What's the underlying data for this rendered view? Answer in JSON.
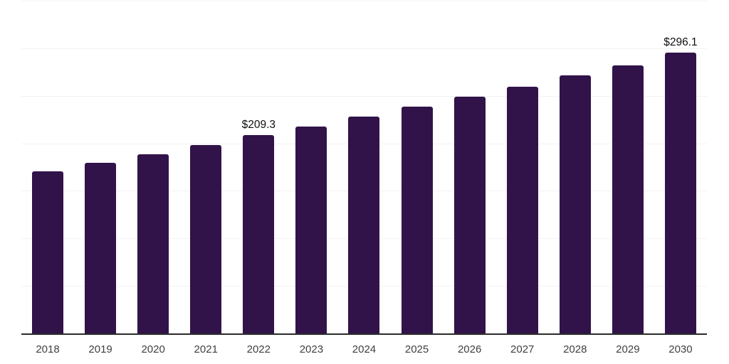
{
  "chart_data": {
    "type": "bar",
    "categories": [
      "2018",
      "2019",
      "2020",
      "2021",
      "2022",
      "2023",
      "2024",
      "2025",
      "2026",
      "2027",
      "2028",
      "2029",
      "2030"
    ],
    "values": [
      171.5,
      180.0,
      189.5,
      199.0,
      209.3,
      218.5,
      229.0,
      239.0,
      249.5,
      260.5,
      272.5,
      283.0,
      296.1
    ],
    "point_labels": [
      "",
      "",
      "",
      "",
      "$209.3",
      "",
      "",
      "",
      "",
      "",
      "",
      "",
      "$296.1"
    ],
    "ylim": [
      0,
      350
    ],
    "grid_step": 50,
    "grid": "horizontal-only",
    "legend_position": "none",
    "colors": {
      "bar": "#311349",
      "gridline": "#f2f2f4",
      "axis_line": "#2b2b2b",
      "tick_label": "#404040",
      "data_label": "#0f0f0f",
      "background": "#ffffff"
    }
  }
}
